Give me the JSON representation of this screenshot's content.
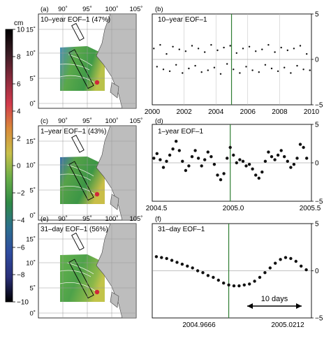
{
  "colorbar": {
    "unit": "cm",
    "ticks": [
      "10",
      "8",
      "6",
      "4",
      "2",
      "0",
      "−2",
      "−4",
      "−6",
      "−8",
      "−10"
    ],
    "colors": [
      "#000000",
      "#3a1c24",
      "#8a2a3c",
      "#d23a4c",
      "#d98a3a",
      "#c8c04a",
      "#6aae48",
      "#2f8a46",
      "#2c6f8e",
      "#2f4ca0",
      "#2a2f78",
      "#000000"
    ]
  },
  "map_ticks": {
    "lon": [
      "90˚",
      "95˚",
      "100˚",
      "105˚"
    ],
    "lat": [
      "15˚",
      "10˚",
      "5˚",
      "0˚"
    ]
  },
  "panels": {
    "a": {
      "tag": "(a)",
      "label": "10–year EOF–1 (47%)"
    },
    "c": {
      "tag": "(c)",
      "label": "1–year EOF–1 (43%)"
    },
    "e": {
      "tag": "(e)",
      "label": "31–day EOF–1 (56%)"
    },
    "b": {
      "tag": "(b)",
      "label": "10–year EOF–1"
    },
    "d": {
      "tag": "(d)",
      "label": "1–year EOF–1"
    },
    "f": {
      "tag": "(f)",
      "label": "31–day EOF–1",
      "scale_bar": "10 days"
    }
  },
  "chart_data": [
    {
      "panel": "b",
      "type": "scatter",
      "title": "10–year EOF–1",
      "x_ticks": [
        "2000",
        "2002",
        "2004",
        "2006",
        "2008",
        "2010"
      ],
      "y_ticks": [
        "5",
        "0",
        "−5"
      ],
      "xlim": [
        2000,
        2010
      ],
      "ylim": [
        -5,
        5
      ],
      "event_marker_x": 2004.98,
      "points": [
        [
          2000.1,
          1.2
        ],
        [
          2000.3,
          -0.8
        ],
        [
          2000.5,
          1.6
        ],
        [
          2000.7,
          -1.1
        ],
        [
          2000.9,
          0.6
        ],
        [
          2001.1,
          -1.3
        ],
        [
          2001.3,
          1.4
        ],
        [
          2001.5,
          -0.6
        ],
        [
          2001.7,
          1.1
        ],
        [
          2001.9,
          -1.5
        ],
        [
          2002.1,
          0.9
        ],
        [
          2002.3,
          -1.0
        ],
        [
          2002.5,
          1.5
        ],
        [
          2002.7,
          -0.7
        ],
        [
          2002.9,
          1.2
        ],
        [
          2003.1,
          -1.4
        ],
        [
          2003.3,
          0.8
        ],
        [
          2003.5,
          -1.2
        ],
        [
          2003.7,
          1.6
        ],
        [
          2003.9,
          -0.9
        ],
        [
          2004.1,
          1.0
        ],
        [
          2004.3,
          -1.6
        ],
        [
          2004.5,
          1.3
        ],
        [
          2004.7,
          -0.5
        ],
        [
          2004.9,
          1.5
        ],
        [
          2005.1,
          -1.1
        ],
        [
          2005.3,
          0.7
        ],
        [
          2005.5,
          -1.5
        ],
        [
          2005.7,
          1.2
        ],
        [
          2005.9,
          -0.8
        ],
        [
          2006.1,
          1.4
        ],
        [
          2006.3,
          -1.2
        ],
        [
          2006.5,
          0.9
        ],
        [
          2006.7,
          -1.4
        ],
        [
          2006.9,
          1.1
        ],
        [
          2007.1,
          -0.6
        ],
        [
          2007.3,
          1.6
        ],
        [
          2007.5,
          -1.0
        ],
        [
          2007.7,
          0.8
        ],
        [
          2007.9,
          -1.3
        ],
        [
          2008.1,
          1.3
        ],
        [
          2008.3,
          -0.9
        ],
        [
          2008.5,
          1.0
        ],
        [
          2008.7,
          -1.5
        ],
        [
          2008.9,
          1.2
        ],
        [
          2009.1,
          -0.7
        ],
        [
          2009.3,
          1.5
        ],
        [
          2009.5,
          -1.1
        ],
        [
          2009.7,
          0.6
        ],
        [
          2009.9,
          -1.2
        ]
      ]
    },
    {
      "panel": "d",
      "type": "scatter",
      "title": "1–year EOF–1",
      "x_ticks": [
        "2004.5",
        "2005.0",
        "2005.5"
      ],
      "y_ticks": [
        "5",
        "0",
        "−5"
      ],
      "xlim": [
        2004.5,
        2005.5
      ],
      "ylim": [
        -5,
        5
      ],
      "event_marker_x": 2004.99,
      "points": [
        [
          2004.51,
          0.6
        ],
        [
          2004.53,
          1.2
        ],
        [
          2004.55,
          0.4
        ],
        [
          2004.57,
          -0.6
        ],
        [
          2004.59,
          0.2
        ],
        [
          2004.61,
          1.0
        ],
        [
          2004.63,
          1.8
        ],
        [
          2004.65,
          2.8
        ],
        [
          2004.67,
          1.6
        ],
        [
          2004.69,
          0.2
        ],
        [
          2004.71,
          -1.0
        ],
        [
          2004.73,
          -0.4
        ],
        [
          2004.75,
          0.8
        ],
        [
          2004.77,
          1.6
        ],
        [
          2004.79,
          0.6
        ],
        [
          2004.81,
          -0.4
        ],
        [
          2004.83,
          0.4
        ],
        [
          2004.85,
          1.4
        ],
        [
          2004.87,
          0.8
        ],
        [
          2004.89,
          -0.2
        ],
        [
          2004.91,
          -1.6
        ],
        [
          2004.93,
          -2.2
        ],
        [
          2004.95,
          -1.4
        ],
        [
          2004.97,
          0.6
        ],
        [
          2004.99,
          2.0
        ],
        [
          2005.01,
          1.0
        ],
        [
          2005.03,
          0.0
        ],
        [
          2005.05,
          0.4
        ],
        [
          2005.07,
          0.2
        ],
        [
          2005.09,
          -0.4
        ],
        [
          2005.11,
          -0.2
        ],
        [
          2005.13,
          -0.8
        ],
        [
          2005.15,
          -1.6
        ],
        [
          2005.17,
          -2.0
        ],
        [
          2005.19,
          -1.2
        ],
        [
          2005.21,
          0.2
        ],
        [
          2005.23,
          1.4
        ],
        [
          2005.25,
          0.8
        ],
        [
          2005.27,
          0.4
        ],
        [
          2005.29,
          1.0
        ],
        [
          2005.31,
          1.6
        ],
        [
          2005.33,
          0.8
        ],
        [
          2005.35,
          0.2
        ],
        [
          2005.37,
          -0.6
        ],
        [
          2005.39,
          -0.2
        ],
        [
          2005.41,
          0.6
        ],
        [
          2005.43,
          2.4
        ],
        [
          2005.45,
          2.0
        ],
        [
          2005.47,
          0.6
        ]
      ]
    },
    {
      "panel": "f",
      "type": "scatter",
      "title": "31–day EOF–1",
      "x_ticks": [
        "2004.9666",
        "2005.0212"
      ],
      "y_ticks": [
        "5",
        "0",
        "−5"
      ],
      "xlim": [
        2004.953,
        2005.03
      ],
      "ylim": [
        -5,
        5
      ],
      "event_marker_x": 2004.99,
      "points": [
        [
          2004.955,
          1.5
        ],
        [
          2004.9575,
          1.4
        ],
        [
          2004.96,
          1.3
        ],
        [
          2004.9625,
          1.1
        ],
        [
          2004.965,
          0.9
        ],
        [
          2004.9675,
          0.7
        ],
        [
          2004.97,
          0.5
        ],
        [
          2004.9725,
          0.3
        ],
        [
          2004.975,
          0.0
        ],
        [
          2004.9775,
          -0.2
        ],
        [
          2004.98,
          -0.5
        ],
        [
          2004.9825,
          -0.7
        ],
        [
          2004.985,
          -1.0
        ],
        [
          2004.9875,
          -1.3
        ],
        [
          2004.99,
          -1.5
        ],
        [
          2004.9925,
          -1.6
        ],
        [
          2004.995,
          -1.6
        ],
        [
          2004.9975,
          -1.5
        ],
        [
          2005.0,
          -1.4
        ],
        [
          2005.0025,
          -1.1
        ],
        [
          2005.005,
          -0.7
        ],
        [
          2005.0075,
          -0.2
        ],
        [
          2005.01,
          0.3
        ],
        [
          2005.0125,
          0.8
        ],
        [
          2005.015,
          1.2
        ],
        [
          2005.0175,
          1.4
        ],
        [
          2005.02,
          1.3
        ],
        [
          2005.0225,
          1.0
        ],
        [
          2005.025,
          0.5
        ],
        [
          2005.0275,
          0.1
        ]
      ]
    }
  ]
}
